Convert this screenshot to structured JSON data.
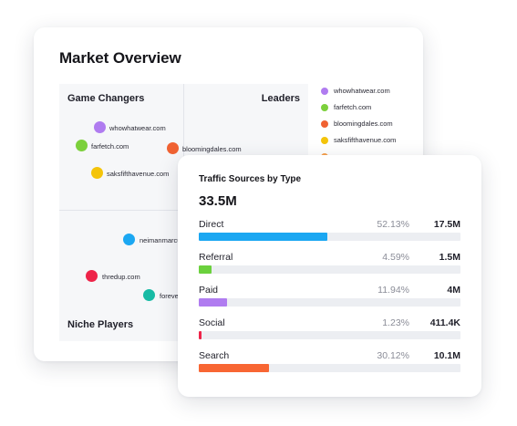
{
  "market_overview": {
    "title": "Market Overview",
    "quadrants": {
      "top_left": "Game Changers",
      "top_right": "Leaders",
      "bottom_left": "Niche Players"
    },
    "points": [
      {
        "label": "whowhatwear.com",
        "color": "#b07cf0",
        "size": 13
      },
      {
        "label": "farfetch.com",
        "color": "#7cd03c",
        "size": 13
      },
      {
        "label": "bloomingdales.com",
        "color": "#f06232",
        "size": 13
      },
      {
        "label": "saksfifthavenue.com",
        "color": "#f4c40a",
        "size": 13
      },
      {
        "label": "neimanmarcu",
        "color": "#1ba7f2",
        "size": 13
      },
      {
        "label": "thredup.com",
        "color": "#ee2449",
        "size": 13
      },
      {
        "label": "foreve",
        "color": "#18bba5",
        "size": 13
      }
    ],
    "legend": [
      {
        "label": "whowhatwear.com",
        "color": "#b07cf0"
      },
      {
        "label": "farfetch.com",
        "color": "#7cd03c"
      },
      {
        "label": "bloomingdales.com",
        "color": "#f06232"
      },
      {
        "label": "saksfifthavenue.com",
        "color": "#f4c40a"
      },
      {
        "label": "",
        "color": "#f7a04a"
      }
    ]
  },
  "traffic": {
    "title": "Traffic Sources by Type",
    "total": "33.5M",
    "rows": [
      {
        "name": "Direct",
        "pct": "52.13%",
        "value": "17.5M",
        "share": 0.4913,
        "color": "#1ba7f2"
      },
      {
        "name": "Referral",
        "pct": "4.59%",
        "value": "1.5M",
        "share": 0.0488,
        "color": "#6bd13d"
      },
      {
        "name": "Paid",
        "pct": "11.94%",
        "value": "4M",
        "share": 0.108,
        "color": "#b07cf0"
      },
      {
        "name": "Social",
        "pct": "1.23%",
        "value": "411.4K",
        "share": 0.0105,
        "color": "#ee2449"
      },
      {
        "name": "Search",
        "pct": "30.12%",
        "value": "10.1M",
        "share": 0.2683,
        "color": "#f86633"
      }
    ]
  }
}
